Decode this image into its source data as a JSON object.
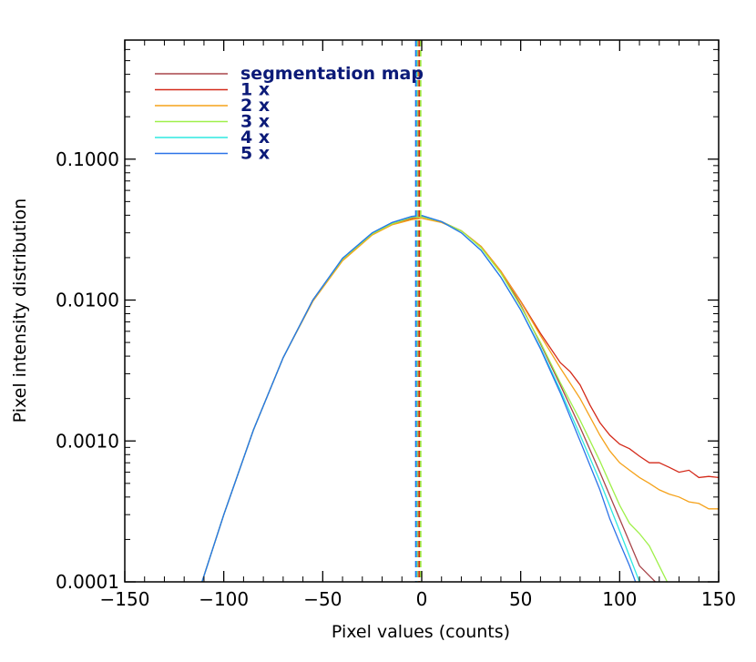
{
  "chart_data": {
    "type": "line",
    "xlabel": "Pixel values (counts)",
    "ylabel": "Pixel intensity distribution",
    "xlim": [
      -150,
      150
    ],
    "ylim": [
      0.0001,
      0.7
    ],
    "yscale": "log",
    "x_ticks": [
      "−150",
      "−100",
      "−50",
      "0",
      "50",
      "100",
      "150"
    ],
    "x_tick_values": [
      -150,
      -100,
      -50,
      0,
      50,
      100,
      150
    ],
    "y_ticks": [
      "0.0001",
      "0.0010",
      "0.0100",
      "0.1000"
    ],
    "y_tick_values": [
      0.0001,
      0.001,
      0.01,
      0.1
    ],
    "legend_position": "top-left",
    "series": [
      {
        "name": "segmentation map",
        "color": "#a8454a",
        "vline": -1.5,
        "points": [
          [
            -111,
            0.0001
          ],
          [
            -100,
            0.0003
          ],
          [
            -85,
            0.0012
          ],
          [
            -70,
            0.0039
          ],
          [
            -55,
            0.01
          ],
          [
            -40,
            0.0195
          ],
          [
            -25,
            0.0295
          ],
          [
            -15,
            0.0348
          ],
          [
            -5,
            0.038
          ],
          [
            0,
            0.039
          ],
          [
            10,
            0.036
          ],
          [
            20,
            0.031
          ],
          [
            30,
            0.024
          ],
          [
            40,
            0.016
          ],
          [
            50,
            0.0092
          ],
          [
            60,
            0.0049
          ],
          [
            70,
            0.0025
          ],
          [
            80,
            0.00125
          ],
          [
            90,
            0.0006
          ],
          [
            100,
            0.00028
          ],
          [
            110,
            0.00013
          ],
          [
            118,
            0.0001
          ]
        ]
      },
      {
        "name": "1 x",
        "color": "#d42a1a",
        "vline": -1.0,
        "points": [
          [
            -111,
            0.0001
          ],
          [
            -100,
            0.0003
          ],
          [
            -85,
            0.0012
          ],
          [
            -70,
            0.0039
          ],
          [
            -55,
            0.01
          ],
          [
            -40,
            0.0195
          ],
          [
            -25,
            0.0295
          ],
          [
            -15,
            0.0348
          ],
          [
            -5,
            0.038
          ],
          [
            0,
            0.039
          ],
          [
            10,
            0.036
          ],
          [
            20,
            0.031
          ],
          [
            30,
            0.024
          ],
          [
            40,
            0.016
          ],
          [
            50,
            0.0098
          ],
          [
            60,
            0.0058
          ],
          [
            70,
            0.0036
          ],
          [
            75,
            0.0031
          ],
          [
            80,
            0.0025
          ],
          [
            85,
            0.0018
          ],
          [
            90,
            0.00135
          ],
          [
            95,
            0.0011
          ],
          [
            100,
            0.00095
          ],
          [
            105,
            0.00088
          ],
          [
            110,
            0.00078
          ],
          [
            115,
            0.0007
          ],
          [
            120,
            0.0007
          ],
          [
            125,
            0.00065
          ],
          [
            130,
            0.0006
          ],
          [
            135,
            0.00062
          ],
          [
            140,
            0.00055
          ],
          [
            145,
            0.00056
          ],
          [
            150,
            0.00055
          ]
        ]
      },
      {
        "name": "2 x",
        "color": "#f5a21a",
        "vline": -2.0,
        "points": [
          [
            -111,
            0.0001
          ],
          [
            -100,
            0.0003
          ],
          [
            -85,
            0.0012
          ],
          [
            -70,
            0.0039
          ],
          [
            -55,
            0.0098
          ],
          [
            -40,
            0.019
          ],
          [
            -25,
            0.029
          ],
          [
            -15,
            0.0342
          ],
          [
            -5,
            0.0372
          ],
          [
            0,
            0.038
          ],
          [
            10,
            0.0355
          ],
          [
            20,
            0.031
          ],
          [
            30,
            0.024
          ],
          [
            40,
            0.016
          ],
          [
            50,
            0.0097
          ],
          [
            60,
            0.0056
          ],
          [
            70,
            0.0033
          ],
          [
            80,
            0.002
          ],
          [
            90,
            0.0011
          ],
          [
            95,
            0.00085
          ],
          [
            100,
            0.0007
          ],
          [
            105,
            0.00062
          ],
          [
            110,
            0.00055
          ],
          [
            115,
            0.0005
          ],
          [
            120,
            0.00045
          ],
          [
            125,
            0.00042
          ],
          [
            130,
            0.0004
          ],
          [
            135,
            0.00037
          ],
          [
            140,
            0.00036
          ],
          [
            145,
            0.00033
          ],
          [
            150,
            0.00033
          ]
        ]
      },
      {
        "name": "3 x",
        "color": "#9ff04a",
        "vline": -0.5,
        "points": [
          [
            -111,
            0.0001
          ],
          [
            -100,
            0.0003
          ],
          [
            -85,
            0.0012
          ],
          [
            -70,
            0.0039
          ],
          [
            -55,
            0.01
          ],
          [
            -40,
            0.0195
          ],
          [
            -25,
            0.0295
          ],
          [
            -15,
            0.0348
          ],
          [
            -5,
            0.0385
          ],
          [
            0,
            0.039
          ],
          [
            10,
            0.036
          ],
          [
            20,
            0.031
          ],
          [
            30,
            0.0235
          ],
          [
            40,
            0.0155
          ],
          [
            50,
            0.009
          ],
          [
            60,
            0.005
          ],
          [
            70,
            0.0026
          ],
          [
            80,
            0.0014
          ],
          [
            90,
            0.00072
          ],
          [
            95,
            0.0005
          ],
          [
            100,
            0.00035
          ],
          [
            105,
            0.00026
          ],
          [
            110,
            0.00022
          ],
          [
            115,
            0.00018
          ],
          [
            120,
            0.00013
          ],
          [
            124,
            0.0001
          ]
        ]
      },
      {
        "name": "4 x",
        "color": "#2ee8e0",
        "vline": -2.5,
        "points": [
          [
            -111,
            0.0001
          ],
          [
            -100,
            0.0003
          ],
          [
            -85,
            0.0012
          ],
          [
            -70,
            0.0039
          ],
          [
            -55,
            0.01
          ],
          [
            -40,
            0.0198
          ],
          [
            -25,
            0.03
          ],
          [
            -15,
            0.0355
          ],
          [
            -5,
            0.0392
          ],
          [
            0,
            0.0398
          ],
          [
            10,
            0.036
          ],
          [
            20,
            0.03
          ],
          [
            30,
            0.0225
          ],
          [
            40,
            0.0145
          ],
          [
            50,
            0.0085
          ],
          [
            60,
            0.0046
          ],
          [
            70,
            0.0023
          ],
          [
            80,
            0.0011
          ],
          [
            90,
            0.00052
          ],
          [
            100,
            0.00023
          ],
          [
            110,
            0.0001
          ]
        ]
      },
      {
        "name": "5 x",
        "color": "#2b73e8",
        "vline": -3.0,
        "points": [
          [
            -111,
            0.0001
          ],
          [
            -100,
            0.0003
          ],
          [
            -85,
            0.0012
          ],
          [
            -70,
            0.0039
          ],
          [
            -55,
            0.01
          ],
          [
            -40,
            0.0198
          ],
          [
            -25,
            0.03
          ],
          [
            -15,
            0.0355
          ],
          [
            -5,
            0.0392
          ],
          [
            0,
            0.0398
          ],
          [
            10,
            0.036
          ],
          [
            20,
            0.03
          ],
          [
            30,
            0.0225
          ],
          [
            40,
            0.0145
          ],
          [
            50,
            0.0085
          ],
          [
            60,
            0.0045
          ],
          [
            70,
            0.0022
          ],
          [
            80,
            0.001
          ],
          [
            90,
            0.00045
          ],
          [
            95,
            0.00028
          ],
          [
            100,
            0.00019
          ],
          [
            105,
            0.00013
          ],
          [
            108,
            0.0001
          ]
        ]
      }
    ]
  }
}
